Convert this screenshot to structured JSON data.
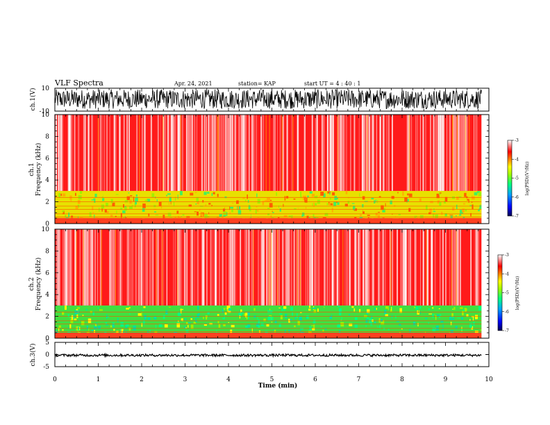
{
  "header": {
    "title": "VLF Spectra",
    "date": "Apr. 24, 2021",
    "station": "station= KAP",
    "start": "start  UT =   4 : 40 : 1"
  },
  "chart_data": [
    {
      "type": "line",
      "panel": "ch1-waveform",
      "ylabel": "ch.1(V)",
      "ylim": [
        -10,
        10
      ],
      "yticks": [
        "10",
        "-10"
      ],
      "xlim": [
        0,
        10
      ],
      "data_extent_min": [
        0,
        9.83
      ],
      "amplitude_range_V": [
        -8,
        9
      ],
      "color": "#000000"
    },
    {
      "type": "heatmap",
      "panel": "ch1-spectrogram",
      "ylabel_top": "ch.1",
      "ylabel": "Frequency  (kHz)",
      "ylim": [
        0,
        10
      ],
      "yticks": [
        "0",
        "2",
        "4",
        "6",
        "8",
        "10"
      ],
      "xlim": [
        0,
        10
      ],
      "data_extent_min": [
        0,
        9.83
      ],
      "band_structure_kHz": {
        "low_green_yellow": [
          0.5,
          3.0
        ],
        "high_red": [
          3.0,
          10.0
        ]
      },
      "colorbar": {
        "label": "log(PSD)(V²/Hz)",
        "range": [
          -7,
          -3
        ],
        "ticks": [
          "-3",
          "-4",
          "-5",
          "-6",
          "-7"
        ]
      }
    },
    {
      "type": "heatmap",
      "panel": "ch2-spectrogram",
      "ylabel_top": "ch.2",
      "ylabel": "Frequency  (kHz)",
      "ylim": [
        0,
        10
      ],
      "yticks": [
        "0",
        "2",
        "4",
        "6",
        "8",
        "10"
      ],
      "xlim": [
        0,
        10
      ],
      "data_extent_min": [
        0,
        9.83
      ],
      "band_structure_kHz": {
        "low_green": [
          0.5,
          3.0
        ],
        "high_red": [
          3.0,
          10.0
        ]
      },
      "colorbar": {
        "label": "log(PSD)(V²/Hz)",
        "range": [
          -7,
          -3
        ],
        "ticks": [
          "-3",
          "-4",
          "-5",
          "-6",
          "-7"
        ]
      }
    },
    {
      "type": "line",
      "panel": "ch3-waveform",
      "ylabel": "ch.3(V)",
      "ylim": [
        -5,
        5
      ],
      "yticks": [
        "5",
        "0",
        "-5"
      ],
      "xlim": [
        0,
        10
      ],
      "data_extent_min": [
        0,
        9.83
      ],
      "amplitude_range_V": [
        -0.8,
        0.2
      ],
      "color": "#000000"
    }
  ],
  "x_axis": {
    "label": "Time  (min)",
    "ticks": [
      "0",
      "1",
      "2",
      "3",
      "4",
      "5",
      "6",
      "7",
      "8",
      "9",
      "10"
    ]
  },
  "colors": {
    "spectrogram_cmap": [
      "#000060",
      "#0000ff",
      "#00a0ff",
      "#00ff60",
      "#a0ff00",
      "#ffff00",
      "#ff8000",
      "#ff0000",
      "#ffffff"
    ]
  }
}
